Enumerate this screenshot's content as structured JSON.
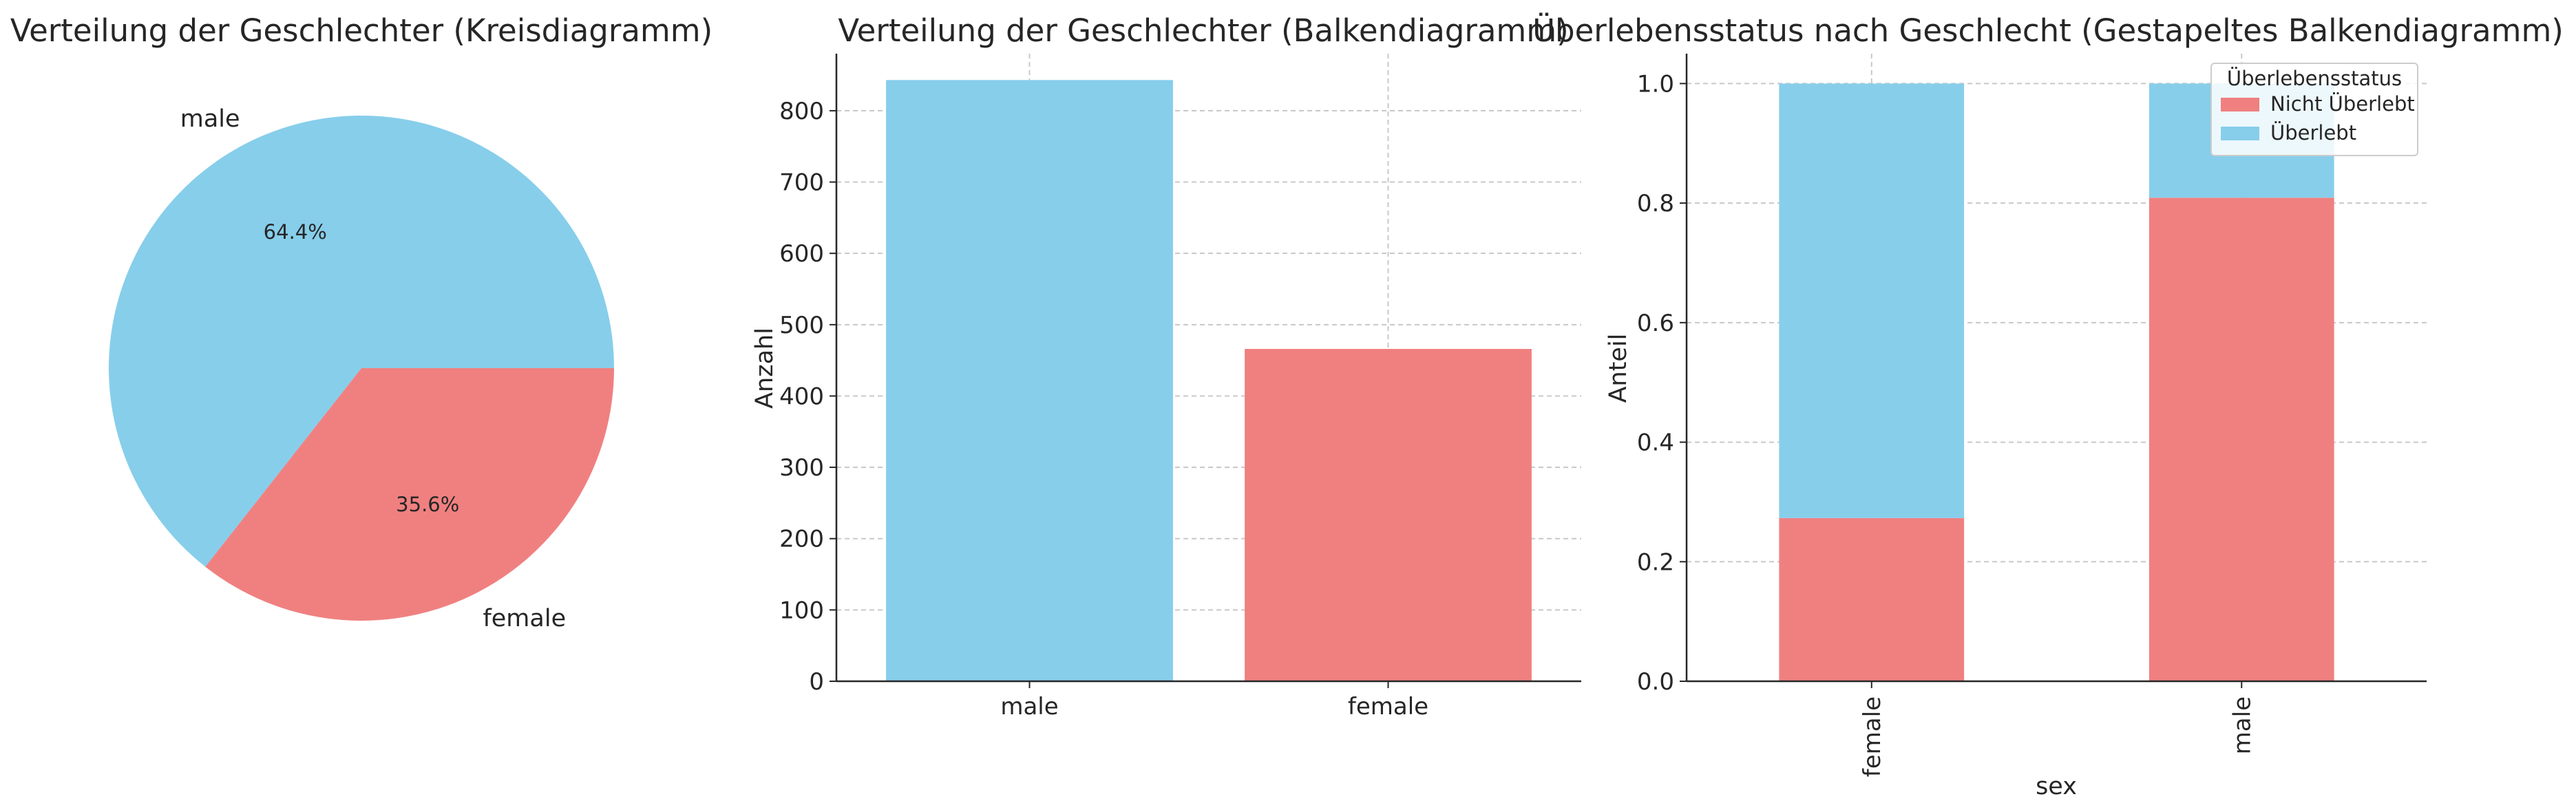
{
  "colors": {
    "male": "#87CEEB",
    "female": "#F08080",
    "nicht_ueberlebt": "#F08080",
    "ueberlebt": "#87CEEB"
  },
  "chart_data": [
    {
      "type": "pie",
      "title": "Verteilung der Geschlechter (Kreisdiagramm)",
      "labels": [
        "male",
        "female"
      ],
      "values": [
        64.4,
        35.6
      ],
      "pct_labels": [
        "64.4%",
        "35.6%"
      ]
    },
    {
      "type": "bar",
      "title": "Verteilung der Geschlechter (Balkendiagramm)",
      "categories": [
        "male",
        "female"
      ],
      "values": [
        843,
        466
      ],
      "xlabel": "",
      "ylabel": "Anzahl",
      "ylim": [
        0,
        880
      ],
      "yticks": [
        0,
        100,
        200,
        300,
        400,
        500,
        600,
        700,
        800
      ],
      "grid": true
    },
    {
      "type": "bar",
      "stacked": true,
      "title": "Überlebensstatus nach Geschlecht (Gestapeltes Balkendiagramm)",
      "categories": [
        "female",
        "male"
      ],
      "series": [
        {
          "name": "Nicht Überlebt",
          "values": [
            0.273,
            0.809
          ]
        },
        {
          "name": "Überlebt",
          "values": [
            0.727,
            0.191
          ]
        }
      ],
      "xlabel": "sex",
      "ylabel": "Anteil",
      "ylim": [
        0,
        1.05
      ],
      "yticks": [
        "0.0",
        "0.2",
        "0.4",
        "0.6",
        "0.8",
        "1.0"
      ],
      "legend": {
        "title": "Überlebensstatus",
        "position": "top-right"
      },
      "grid": true
    }
  ]
}
